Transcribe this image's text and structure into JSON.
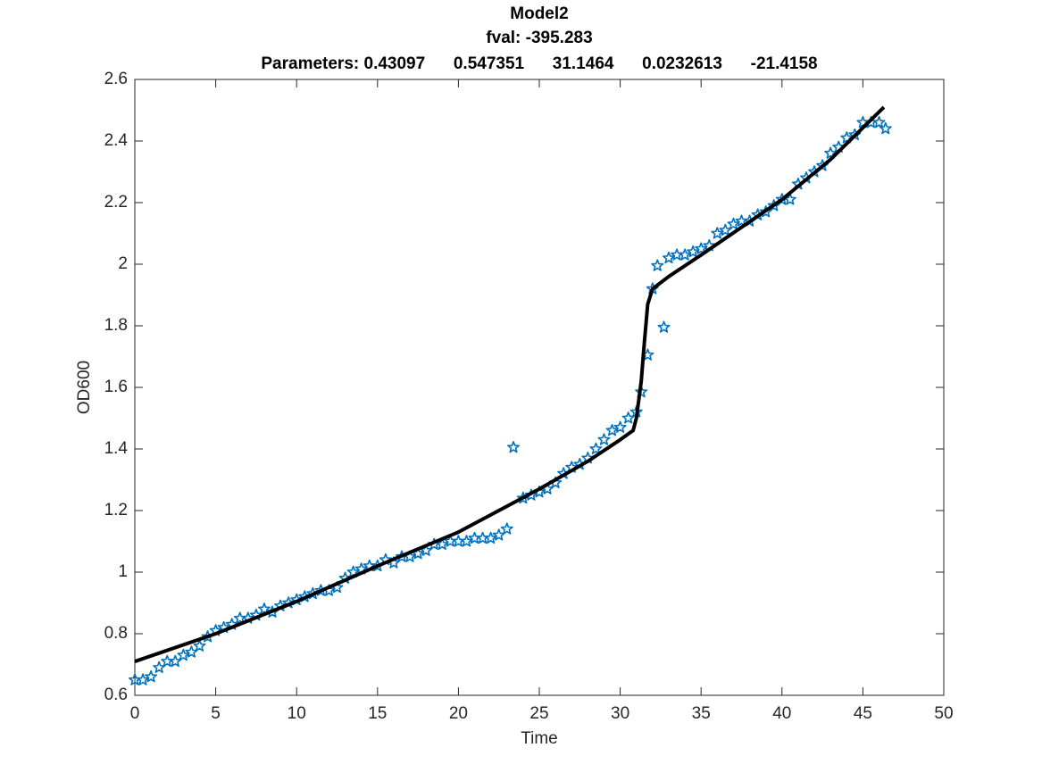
{
  "chart_data": {
    "type": "scatter",
    "title": [
      "Model2",
      "fval: -395.283",
      "Parameters: 0.43097      0.547351      31.1464      0.0232613      -21.4158"
    ],
    "xlabel": "Time",
    "ylabel": "OD600",
    "xlim": [
      0,
      50
    ],
    "xticks": [
      0,
      5,
      10,
      15,
      20,
      25,
      30,
      35,
      40,
      45,
      50
    ],
    "ylim": [
      0.6,
      2.6
    ],
    "yticks": [
      0.6,
      0.8,
      1,
      1.2,
      1.4,
      1.6,
      1.8,
      2,
      2.2,
      2.4,
      2.6
    ],
    "grid": false,
    "series": [
      {
        "type": "scatter",
        "marker": "star",
        "color": "#0072bd",
        "x": [
          0,
          0.5,
          1,
          1.5,
          2,
          2.5,
          3,
          3.5,
          4,
          4.5,
          5,
          5.5,
          6,
          6.5,
          7,
          7.5,
          8,
          8.5,
          9,
          9.5,
          10,
          10.5,
          11,
          11.5,
          12,
          12.5,
          13,
          13.5,
          14,
          14.5,
          15,
          15.5,
          16,
          16.5,
          17,
          17.5,
          18,
          18.5,
          19,
          19.5,
          20,
          20.5,
          21,
          21.5,
          22,
          22.5,
          23,
          23.4,
          24,
          24.5,
          25,
          25.5,
          26,
          26.5,
          27,
          27.5,
          28,
          28.5,
          29,
          29.5,
          30,
          30.5,
          31,
          31.3,
          31.7,
          32,
          32.3,
          32.7,
          33,
          33.5,
          34,
          34.5,
          35,
          35.5,
          36,
          36.5,
          37,
          37.5,
          38,
          38.5,
          39,
          39.5,
          40,
          40.5,
          41,
          41.5,
          42,
          42.5,
          43,
          43.5,
          44,
          44.5,
          45,
          45.5,
          46,
          46.4
        ],
        "values": [
          0.65,
          0.65,
          0.66,
          0.69,
          0.71,
          0.71,
          0.73,
          0.74,
          0.76,
          0.79,
          0.81,
          0.82,
          0.83,
          0.85,
          0.85,
          0.86,
          0.88,
          0.87,
          0.89,
          0.9,
          0.91,
          0.92,
          0.93,
          0.94,
          0.94,
          0.95,
          0.98,
          1,
          1.01,
          1.02,
          1.02,
          1.04,
          1.03,
          1.05,
          1.05,
          1.06,
          1.07,
          1.09,
          1.09,
          1.1,
          1.1,
          1.1,
          1.11,
          1.11,
          1.11,
          1.12,
          1.14,
          1.405,
          1.24,
          1.25,
          1.26,
          1.27,
          1.29,
          1.32,
          1.34,
          1.35,
          1.37,
          1.4,
          1.43,
          1.46,
          1.47,
          1.5,
          1.52,
          1.585,
          1.705,
          1.92,
          1.995,
          1.795,
          2.02,
          2.03,
          2.03,
          2.04,
          2.05,
          2.06,
          2.1,
          2.11,
          2.13,
          2.14,
          2.14,
          2.16,
          2.17,
          2.19,
          2.21,
          2.21,
          2.26,
          2.28,
          2.3,
          2.32,
          2.36,
          2.38,
          2.41,
          2.42,
          2.46,
          2.46,
          2.46,
          2.44
        ]
      },
      {
        "type": "line",
        "color": "#000000",
        "x": [
          0,
          5,
          10,
          15,
          20,
          25,
          28,
          30,
          30.8,
          31,
          31.3,
          31.5,
          31.7,
          32,
          33,
          35,
          40,
          43,
          46.3
        ],
        "values": [
          0.71,
          0.8,
          0.905,
          1.02,
          1.13,
          1.27,
          1.36,
          1.43,
          1.46,
          1.5,
          1.62,
          1.75,
          1.87,
          1.92,
          1.96,
          2.03,
          2.21,
          2.34,
          2.51
        ]
      }
    ]
  }
}
